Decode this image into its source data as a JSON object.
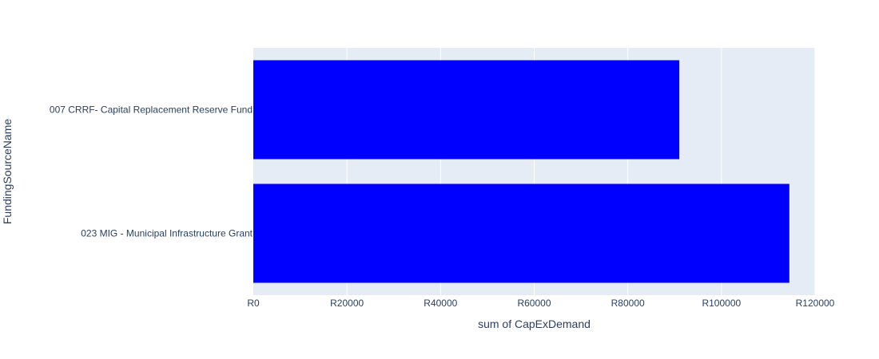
{
  "chart_data": {
    "type": "bar",
    "orientation": "horizontal",
    "categories": [
      "007 CRRF- Capital Replacement Reserve Fund",
      "023 MIG - Municipal Infrastructure Grant"
    ],
    "values": [
      91000,
      114500
    ],
    "xlabel": "sum of CapExDemand",
    "ylabel": "FundingSourceName",
    "xlim": [
      0,
      120000
    ],
    "x_ticks": [
      0,
      20000,
      40000,
      60000,
      80000,
      100000,
      120000
    ],
    "x_tick_labels": [
      "R0",
      "R20000",
      "R40000",
      "R60000",
      "R80000",
      "R100000",
      "R120000"
    ],
    "bar_color": "#0000ff",
    "plot_background": "#e5ecf6",
    "grid": true,
    "legend": "none"
  }
}
